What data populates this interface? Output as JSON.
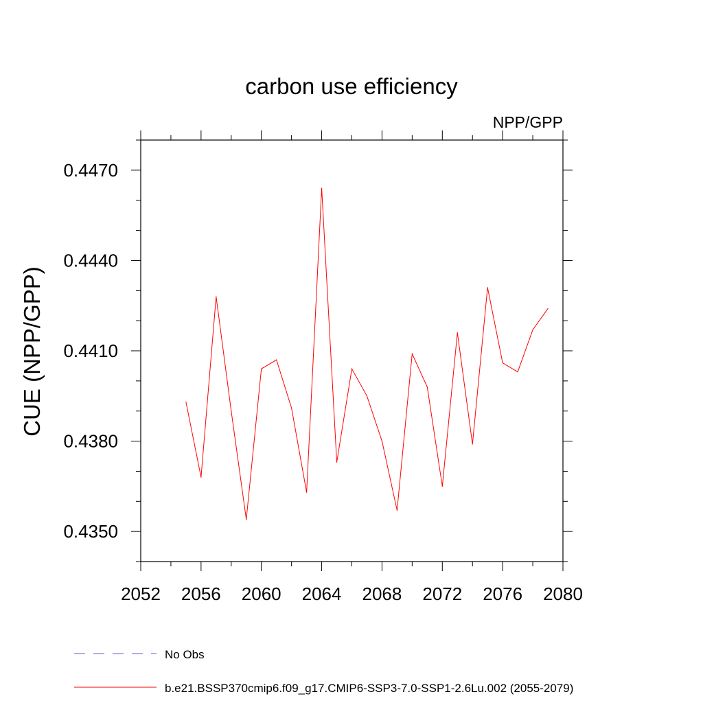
{
  "chart_data": {
    "type": "line",
    "title": "carbon use efficiency",
    "subtitle": "NPP/GPP",
    "xlabel": "",
    "ylabel": "CUE  (NPP/GPP)",
    "xlim": [
      2052,
      2080
    ],
    "ylim": [
      0.434,
      0.448
    ],
    "x_ticks": [
      2052,
      2056,
      2060,
      2064,
      2068,
      2072,
      2076,
      2080
    ],
    "x_tick_labels": [
      "2052",
      "2056",
      "2060",
      "2064",
      "2068",
      "2072",
      "2076",
      "2080"
    ],
    "y_ticks": [
      0.435,
      0.438,
      0.441,
      0.444,
      0.447
    ],
    "y_tick_labels": [
      "0.4350",
      "0.4380",
      "0.4410",
      "0.4440",
      "0.4470"
    ],
    "grid": false,
    "series": [
      {
        "name": "b.e21.BSSP370cmip6.f09_g17.CMIP6-SSP3-7.0-SSP1-2.6Lu.002 (2055-2079)",
        "color": "#ff0000",
        "x": [
          2055,
          2056,
          2057,
          2058,
          2059,
          2060,
          2061,
          2062,
          2063,
          2064,
          2065,
          2066,
          2067,
          2068,
          2069,
          2070,
          2071,
          2072,
          2073,
          2074,
          2075,
          2076,
          2077,
          2078,
          2079
        ],
        "values": [
          0.4393,
          0.4368,
          0.4428,
          0.439,
          0.4354,
          0.4404,
          0.4407,
          0.4391,
          0.4363,
          0.4464,
          0.4373,
          0.4404,
          0.4395,
          0.438,
          0.4357,
          0.4409,
          0.4398,
          0.4365,
          0.4416,
          0.4379,
          0.4431,
          0.4406,
          0.4403,
          0.4417,
          0.4424
        ]
      }
    ],
    "legend": {
      "placement": "bottom",
      "entries": [
        {
          "label": "No Obs",
          "color": "#6a5acd",
          "style": "dashed"
        },
        {
          "label": "b.e21.BSSP370cmip6.f09_g17.CMIP6-SSP3-7.0-SSP1-2.6Lu.002 (2055-2079)",
          "color": "#ff0000",
          "style": "solid"
        }
      ]
    }
  }
}
